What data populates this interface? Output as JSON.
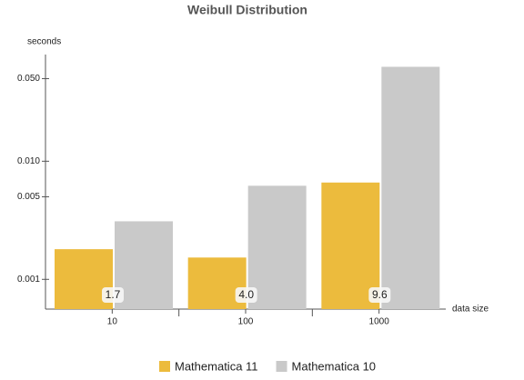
{
  "chart_data": {
    "type": "bar",
    "title": "Weibull Distribution",
    "y_label": "seconds",
    "x_label": "data size",
    "categories": [
      "10",
      "100",
      "1000"
    ],
    "series": [
      {
        "name": "Mathematica 11",
        "color": "#ecbb3d",
        "values": [
          0.0018,
          0.00153,
          0.0066
        ]
      },
      {
        "name": "Mathematica 10",
        "color": "#c9c9c9",
        "values": [
          0.0031,
          0.0062,
          0.063
        ]
      }
    ],
    "speedup": {
      "values": [
        1.7,
        4.0,
        9.6
      ],
      "value_labels": [
        "1.7",
        "4.0",
        "9.6"
      ]
    },
    "log_scale": true,
    "ylim": [
      0.00056,
      0.08
    ],
    "yticks": [
      0.001,
      0.005,
      {
        "value": 0.01,
        "label": "0.010"
      },
      {
        "value": 0.05,
        "label": "0.050"
      }
    ]
  }
}
